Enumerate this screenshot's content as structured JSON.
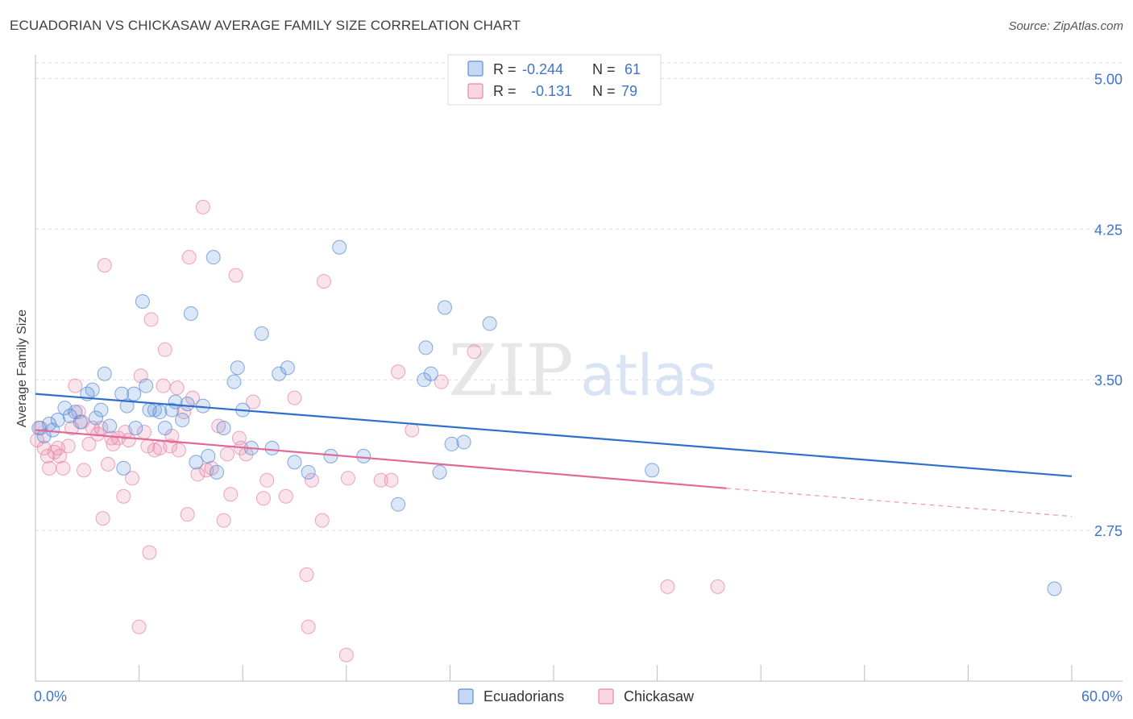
{
  "chart_data": {
    "type": "scatter",
    "title": "ECUADORIAN VS CHICKASAW AVERAGE FAMILY SIZE CORRELATION CHART",
    "source": "Source: ZipAtlas.com",
    "xlabel": "",
    "ylabel": "Average Family Size",
    "xlim": [
      0,
      60
    ],
    "ylim": [
      2.0,
      5.15
    ],
    "x_tick_labels": [
      "0.0%",
      "60.0%"
    ],
    "y_ticks": [
      {
        "value": 2.75,
        "label": "2.75"
      },
      {
        "value": 3.5,
        "label": "3.50"
      },
      {
        "value": 4.25,
        "label": "4.25"
      },
      {
        "value": 5.0,
        "label": "5.00"
      }
    ],
    "grid": true,
    "watermark": {
      "zip": "ZIP",
      "atlas": "atlas"
    },
    "colors": {
      "ecuadorians": "#5b8fd6",
      "chickasaw": "#e886a8",
      "ecuadorians_line": "#2e6fcc",
      "chickasaw_line": "#e0699a",
      "tick_label": "#3f74c8"
    },
    "legend": {
      "position": "top-center",
      "rows": [
        {
          "r_label": "R =",
          "r_value": "-0.244",
          "n_label": "N =",
          "n_value": "61"
        },
        {
          "r_label": "R =",
          "r_value": "-0.131",
          "n_label": "N =",
          "n_value": "79"
        }
      ]
    },
    "bottom_legend": [
      "Ecuadorians",
      "Chickasaw"
    ],
    "series": [
      {
        "name": "Ecuadorians",
        "trend": {
          "x0": 0,
          "y0": 3.43,
          "x1": 60,
          "y1": 3.02
        },
        "points": [
          [
            0.2,
            3.26
          ],
          [
            0.5,
            3.22
          ],
          [
            0.8,
            3.28
          ],
          [
            1.0,
            3.25
          ],
          [
            1.3,
            3.3
          ],
          [
            1.7,
            3.36
          ],
          [
            2.0,
            3.32
          ],
          [
            2.3,
            3.34
          ],
          [
            2.6,
            3.29
          ],
          [
            3.0,
            3.43
          ],
          [
            3.3,
            3.45
          ],
          [
            3.5,
            3.31
          ],
          [
            3.8,
            3.35
          ],
          [
            4.0,
            3.53
          ],
          [
            4.3,
            3.27
          ],
          [
            5.0,
            3.43
          ],
          [
            5.1,
            3.06
          ],
          [
            5.3,
            3.37
          ],
          [
            5.7,
            3.43
          ],
          [
            5.8,
            3.26
          ],
          [
            6.2,
            3.89
          ],
          [
            6.4,
            3.47
          ],
          [
            6.6,
            3.35
          ],
          [
            6.9,
            3.35
          ],
          [
            7.2,
            3.34
          ],
          [
            7.5,
            3.26
          ],
          [
            7.9,
            3.35
          ],
          [
            8.1,
            3.39
          ],
          [
            8.5,
            3.3
          ],
          [
            8.8,
            3.38
          ],
          [
            9.0,
            3.83
          ],
          [
            9.3,
            3.09
          ],
          [
            9.7,
            3.37
          ],
          [
            10.0,
            3.12
          ],
          [
            10.3,
            4.11
          ],
          [
            10.5,
            3.04
          ],
          [
            10.9,
            3.26
          ],
          [
            11.5,
            3.49
          ],
          [
            11.7,
            3.56
          ],
          [
            12.0,
            3.35
          ],
          [
            12.5,
            3.16
          ],
          [
            13.1,
            3.73
          ],
          [
            13.7,
            3.16
          ],
          [
            14.1,
            3.53
          ],
          [
            14.6,
            3.56
          ],
          [
            15.0,
            3.09
          ],
          [
            15.8,
            3.04
          ],
          [
            17.1,
            3.12
          ],
          [
            17.6,
            4.16
          ],
          [
            19.0,
            3.12
          ],
          [
            21.0,
            2.88
          ],
          [
            22.5,
            3.5
          ],
          [
            22.6,
            3.66
          ],
          [
            22.9,
            3.53
          ],
          [
            23.4,
            3.04
          ],
          [
            23.7,
            3.86
          ],
          [
            24.1,
            3.18
          ],
          [
            24.8,
            3.19
          ],
          [
            26.3,
            3.78
          ],
          [
            35.7,
            3.05
          ],
          [
            59.0,
            2.46
          ]
        ]
      },
      {
        "name": "Chickasaw",
        "trend": {
          "x0": 0,
          "y0": 3.25,
          "x1": 40,
          "y1": 2.96,
          "dash_x1": 60,
          "dash_y1": 2.82
        },
        "points": [
          [
            0.1,
            3.2
          ],
          [
            0.3,
            3.26
          ],
          [
            0.5,
            3.16
          ],
          [
            0.7,
            3.12
          ],
          [
            0.8,
            3.06
          ],
          [
            1.1,
            3.14
          ],
          [
            1.3,
            3.16
          ],
          [
            1.4,
            3.12
          ],
          [
            1.6,
            3.06
          ],
          [
            1.9,
            3.17
          ],
          [
            2.1,
            3.26
          ],
          [
            2.3,
            3.47
          ],
          [
            2.5,
            3.34
          ],
          [
            2.7,
            3.29
          ],
          [
            2.8,
            3.05
          ],
          [
            3.1,
            3.18
          ],
          [
            3.3,
            3.26
          ],
          [
            3.6,
            3.23
          ],
          [
            3.8,
            3.26
          ],
          [
            3.9,
            2.81
          ],
          [
            4.0,
            4.07
          ],
          [
            4.2,
            3.08
          ],
          [
            4.4,
            3.21
          ],
          [
            4.5,
            3.18
          ],
          [
            4.8,
            3.21
          ],
          [
            5.1,
            2.92
          ],
          [
            5.2,
            3.24
          ],
          [
            5.4,
            3.2
          ],
          [
            5.6,
            3.01
          ],
          [
            6.0,
            2.27
          ],
          [
            6.1,
            3.52
          ],
          [
            6.3,
            3.24
          ],
          [
            6.5,
            3.17
          ],
          [
            6.6,
            2.64
          ],
          [
            6.7,
            3.8
          ],
          [
            6.9,
            3.15
          ],
          [
            7.2,
            3.16
          ],
          [
            7.4,
            3.47
          ],
          [
            7.5,
            3.65
          ],
          [
            7.8,
            3.17
          ],
          [
            7.9,
            3.22
          ],
          [
            8.2,
            3.46
          ],
          [
            8.3,
            3.15
          ],
          [
            8.6,
            3.34
          ],
          [
            8.8,
            2.83
          ],
          [
            8.9,
            4.11
          ],
          [
            9.1,
            3.41
          ],
          [
            9.4,
            3.03
          ],
          [
            9.7,
            4.36
          ],
          [
            9.9,
            3.05
          ],
          [
            10.2,
            3.06
          ],
          [
            10.6,
            3.27
          ],
          [
            10.9,
            2.8
          ],
          [
            11.1,
            3.13
          ],
          [
            11.3,
            2.93
          ],
          [
            11.6,
            4.02
          ],
          [
            11.8,
            3.21
          ],
          [
            11.9,
            3.16
          ],
          [
            12.2,
            3.13
          ],
          [
            12.6,
            3.39
          ],
          [
            13.2,
            2.91
          ],
          [
            13.4,
            3.0
          ],
          [
            14.5,
            2.92
          ],
          [
            15.0,
            3.41
          ],
          [
            15.7,
            2.53
          ],
          [
            15.8,
            2.27
          ],
          [
            16.0,
            3.0
          ],
          [
            16.6,
            2.8
          ],
          [
            16.7,
            3.99
          ],
          [
            18.0,
            2.13
          ],
          [
            18.1,
            3.01
          ],
          [
            20.0,
            3.0
          ],
          [
            20.6,
            3.0
          ],
          [
            21.0,
            3.54
          ],
          [
            21.8,
            3.25
          ],
          [
            23.5,
            3.49
          ],
          [
            25.4,
            3.64
          ],
          [
            36.6,
            2.47
          ],
          [
            39.5,
            2.47
          ]
        ]
      }
    ]
  }
}
